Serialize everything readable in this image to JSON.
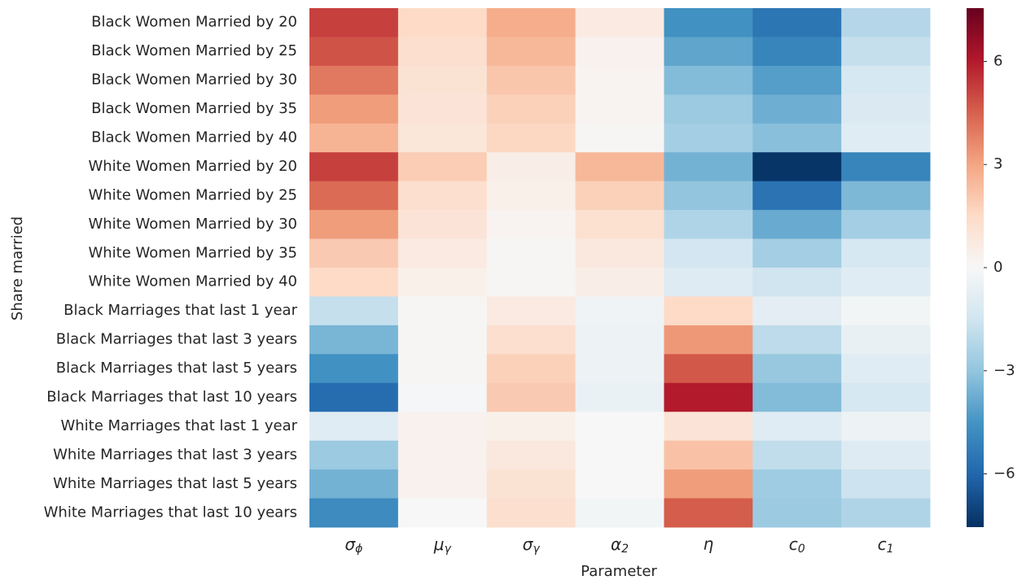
{
  "chart_data": {
    "type": "heatmap",
    "x_label": "Parameter",
    "y_label": "Share married",
    "categories": [
      "σ_ϕ",
      "μ_γ",
      "σ_γ",
      "α_2",
      "η",
      "c_0",
      "c_1"
    ],
    "rows": [
      "Black Women Married by 20",
      "Black Women Married by 25",
      "Black Women Married by 30",
      "Black Women Married by 35",
      "Black Women Married by 40",
      "White Women Married by 20",
      "White Women Married by 25",
      "White Women Married by 30",
      "White Women Married by 35",
      "White Women Married by 40",
      "Black Marriages that last 1 year",
      "Black Marriages that last 3 years",
      "Black Marriages that last 5 years",
      "Black Marriages that last 10 years",
      "White Marriages that last 1 year",
      "White Marriages that last 3 years",
      "White Marriages that last 5 years",
      "White Marriages that last 10 years"
    ],
    "values": [
      [
        5.2,
        1.5,
        2.8,
        0.7,
        -4.6,
        -5.5,
        -2.2
      ],
      [
        4.8,
        1.3,
        2.5,
        0.3,
        -4.0,
        -5.0,
        -1.8
      ],
      [
        4.0,
        1.1,
        2.1,
        0.2,
        -3.3,
        -4.2,
        -1.3
      ],
      [
        3.2,
        1.0,
        1.8,
        0.2,
        -2.8,
        -3.7,
        -1.1
      ],
      [
        2.6,
        0.9,
        1.6,
        0.1,
        -2.6,
        -3.2,
        -0.9
      ],
      [
        5.2,
        1.9,
        0.5,
        2.5,
        -3.6,
        -7.4,
        -5.0
      ],
      [
        4.3,
        1.3,
        0.4,
        1.8,
        -3.0,
        -5.6,
        -3.4
      ],
      [
        3.2,
        1.0,
        0.2,
        1.2,
        -2.3,
        -3.8,
        -2.6
      ],
      [
        2.0,
        0.7,
        0.1,
        0.8,
        -1.4,
        -2.6,
        -1.3
      ],
      [
        1.5,
        0.4,
        0.1,
        0.5,
        -1.0,
        -1.5,
        -0.9
      ],
      [
        -1.8,
        0.1,
        0.7,
        -0.3,
        1.5,
        -0.8,
        -0.2
      ],
      [
        -3.5,
        0.1,
        1.3,
        -0.4,
        3.3,
        -2.0,
        -0.6
      ],
      [
        -4.6,
        0.1,
        1.8,
        -0.4,
        4.7,
        -2.9,
        -0.9
      ],
      [
        -5.8,
        -0.1,
        2.0,
        -0.5,
        6.0,
        -3.3,
        -1.3
      ],
      [
        -0.9,
        0.3,
        0.4,
        0.0,
        1.0,
        -0.9,
        -0.4
      ],
      [
        -2.8,
        0.3,
        0.8,
        0.0,
        2.2,
        -1.9,
        -1.0
      ],
      [
        -3.6,
        0.3,
        1.1,
        0.0,
        3.2,
        -2.7,
        -1.6
      ],
      [
        -4.8,
        0.0,
        1.3,
        -0.2,
        4.6,
        -2.8,
        -2.3
      ]
    ],
    "colormap": "RdBu_r",
    "zlim": [
      -7.55,
      7.55
    ],
    "zticks": [
      6,
      3,
      0,
      {
        "value": -3,
        "label": "−3"
      },
      {
        "value": -6,
        "label": "−6"
      }
    ]
  }
}
